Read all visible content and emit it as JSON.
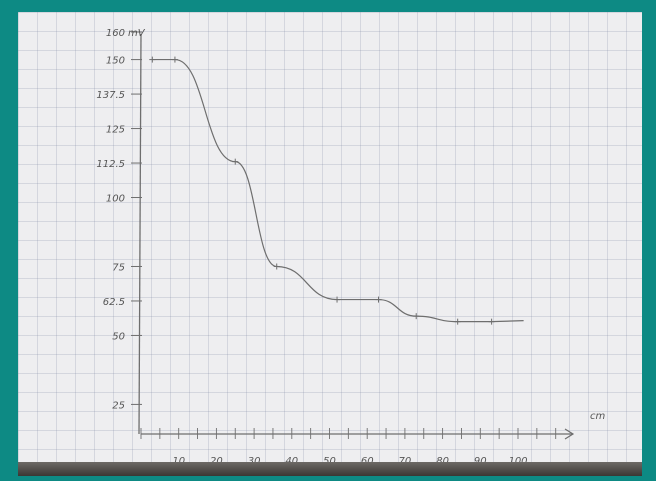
{
  "chart_data": {
    "type": "line",
    "title": "",
    "xlabel": "cm",
    "ylabel": "mV",
    "x_ticks": [
      "10",
      "20",
      "30",
      "40",
      "50",
      "60",
      "70",
      "80",
      "90",
      "100"
    ],
    "y_ticks": [
      "25",
      "50",
      "62.5",
      "75",
      "100",
      "112.5",
      "125",
      "137.5",
      "150",
      "160"
    ],
    "xlim": [
      0,
      100
    ],
    "ylim": [
      15,
      160
    ],
    "grid": true,
    "series": [
      {
        "x": [
          3,
          9,
          25,
          36,
          52,
          63,
          73,
          84,
          93
        ],
        "y": [
          150,
          150,
          113,
          75,
          63,
          63,
          57,
          55,
          55
        ]
      }
    ],
    "colors": {
      "line": "#6e6e6e",
      "paper": "#eeeef0",
      "border": "#0d8a84"
    }
  }
}
